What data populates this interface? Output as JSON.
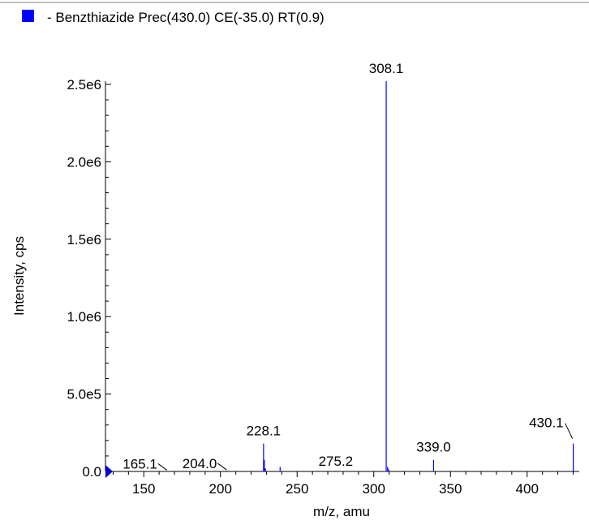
{
  "chart_data": {
    "type": "bar",
    "title": "- Benzthiazide Prec(430.0) CE(-35.0) RT(0.9)",
    "xlabel": "m/z, amu",
    "ylabel": "Intensity, cps",
    "xlim": [
      125,
      434
    ],
    "ylim": [
      0,
      2720000
    ],
    "x_ticks": [
      150,
      200,
      250,
      300,
      350,
      400
    ],
    "x_tick_labels": [
      "150",
      "200",
      "250",
      "300",
      "350",
      "400"
    ],
    "y_ticks": [
      0,
      500000,
      1000000,
      1500000,
      2000000,
      2500000
    ],
    "y_tick_labels": [
      "0.0",
      "5.0e5",
      "1.0e6",
      "1.5e6",
      "2.0e6",
      "2.5e6"
    ],
    "series": [
      {
        "name": "- Benzthiazide Prec(430.0) CE(-35.0) RT(0.9)",
        "color": "#0000ff",
        "peaks": [
          {
            "mz": 165.1,
            "intensity": 3000
          },
          {
            "mz": 204.0,
            "intensity": 5000
          },
          {
            "mz": 228.1,
            "intensity": 180000
          },
          {
            "mz": 228.6,
            "intensity": 75000
          },
          {
            "mz": 229.3,
            "intensity": 20000
          },
          {
            "mz": 238.9,
            "intensity": 30000
          },
          {
            "mz": 275.2,
            "intensity": 4000
          },
          {
            "mz": 308.1,
            "intensity": 2520000
          },
          {
            "mz": 309.0,
            "intensity": 30000
          },
          {
            "mz": 309.6,
            "intensity": 15000
          },
          {
            "mz": 339.0,
            "intensity": 75000
          },
          {
            "mz": 430.1,
            "intensity": 180000
          }
        ]
      }
    ],
    "peak_labels": [
      {
        "text": "165.1",
        "mz": 165.1,
        "intensity": 3000,
        "leader": true
      },
      {
        "text": "204.0",
        "mz": 204.0,
        "intensity": 5000,
        "leader": true
      },
      {
        "text": "228.1",
        "mz": 228.1,
        "intensity": 180000,
        "leader": false
      },
      {
        "text": "275.2",
        "mz": 275.2,
        "intensity": 4000,
        "leader": false
      },
      {
        "text": "308.1",
        "mz": 308.1,
        "intensity": 2520000,
        "leader": false
      },
      {
        "text": "339.0",
        "mz": 339.0,
        "intensity": 75000,
        "leader": false
      },
      {
        "text": "430.1",
        "mz": 430.1,
        "intensity": 180000,
        "leader": true
      }
    ],
    "legend_position": "top-left",
    "grid": false
  }
}
